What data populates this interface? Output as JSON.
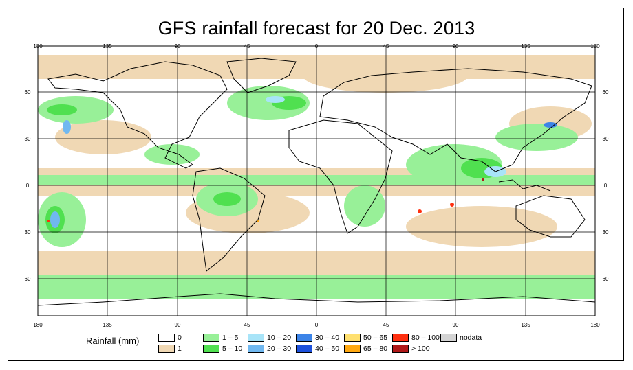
{
  "title": "GFS rainfall forecast for 20 Dec. 2013",
  "map": {
    "lon_ticks_top": [
      "180",
      "135",
      "90",
      "45",
      "0",
      "45",
      "90",
      "135",
      "180"
    ],
    "lon_ticks_bottom": [
      "180",
      "135",
      "90",
      "45",
      "0",
      "45",
      "90",
      "135",
      "180"
    ],
    "lat_ticks_left": [
      "60",
      "30",
      "0",
      "30",
      "60"
    ],
    "lat_ticks_right": [
      "60",
      "30",
      "0",
      "30",
      "60"
    ]
  },
  "legend": {
    "title": "Rainfall (mm)",
    "items": [
      {
        "label": "0",
        "color": "#ffffff"
      },
      {
        "label": "1",
        "color": "#f0d8b4"
      },
      {
        "label": "1 – 5",
        "color": "#98f098"
      },
      {
        "label": "5 – 10",
        "color": "#50e050"
      },
      {
        "label": "10 – 20",
        "color": "#a8e4f8"
      },
      {
        "label": "20 – 30",
        "color": "#70b8f0"
      },
      {
        "label": "30 – 40",
        "color": "#3c84e8"
      },
      {
        "label": "40 – 50",
        "color": "#1c50dc"
      },
      {
        "label": "50 – 65",
        "color": "#ffe070"
      },
      {
        "label": "65 – 80",
        "color": "#ffa810"
      },
      {
        "label": "80 – 100",
        "color": "#ff3010"
      },
      {
        "label": "> 100",
        "color": "#b01818"
      },
      {
        "label": "nodata",
        "color": "#d4d4d4"
      }
    ]
  }
}
